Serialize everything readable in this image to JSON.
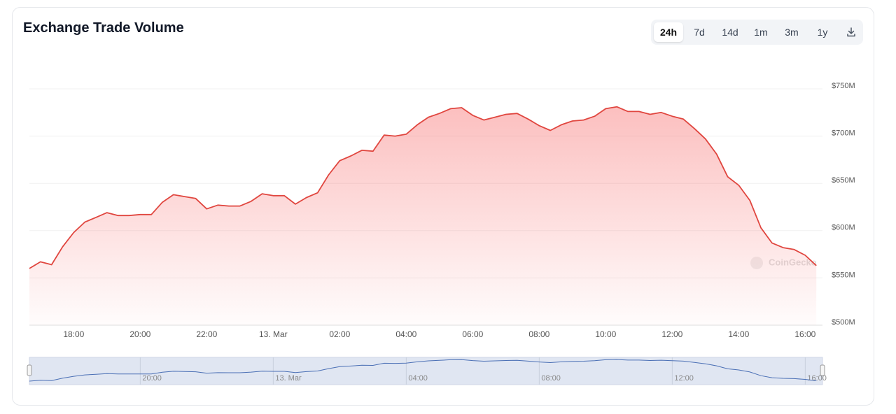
{
  "chart_data": {
    "type": "area",
    "title": "Exchange Trade Volume",
    "categories": [
      null,
      null,
      null,
      null,
      "18:00",
      null,
      null,
      null,
      null,
      null,
      "20:00",
      null,
      null,
      null,
      null,
      null,
      "22:00",
      null,
      null,
      null,
      null,
      null,
      "13. Mar",
      null,
      null,
      null,
      null,
      null,
      "02:00",
      null,
      null,
      null,
      null,
      null,
      "04:00",
      null,
      null,
      null,
      null,
      null,
      "06:00",
      null,
      null,
      null,
      null,
      null,
      "08:00",
      null,
      null,
      null,
      null,
      null,
      "10:00",
      null,
      null,
      null,
      null,
      null,
      "12:00",
      null,
      null,
      null,
      null,
      null,
      "14:00",
      null,
      null,
      null,
      null,
      null,
      "16:00",
      null
    ],
    "values": [
      560,
      567,
      564,
      583,
      598,
      609,
      614,
      619,
      616,
      616,
      617,
      617,
      630,
      638,
      636,
      634,
      623,
      627,
      626,
      626,
      631,
      639,
      637,
      637,
      628,
      635,
      640,
      659,
      674,
      679,
      685,
      684,
      701,
      700,
      702,
      712,
      720,
      724,
      729,
      730,
      722,
      717,
      720,
      723,
      724,
      718,
      711,
      706,
      712,
      716,
      717,
      721,
      729,
      731,
      726,
      726,
      723,
      725,
      721,
      718,
      708,
      697,
      681,
      657,
      648,
      632,
      603,
      587,
      582,
      580,
      574,
      563
    ],
    "color": "#e0463f",
    "ylim": [
      500,
      750
    ],
    "yticks": [
      {
        "value": 500,
        "label": "$500M"
      },
      {
        "value": 550,
        "label": "$550M"
      },
      {
        "value": 600,
        "label": "$600M"
      },
      {
        "value": 650,
        "label": "$650M"
      },
      {
        "value": 700,
        "label": "$700M"
      },
      {
        "value": 750,
        "label": "$750M"
      }
    ],
    "grid": true,
    "navigator_color": "#4a6fb5"
  },
  "toolbar": {
    "buttons": [
      "24h",
      "7d",
      "14d",
      "1m",
      "3m",
      "1y"
    ],
    "active": 0
  },
  "watermark": "CoinGecko"
}
